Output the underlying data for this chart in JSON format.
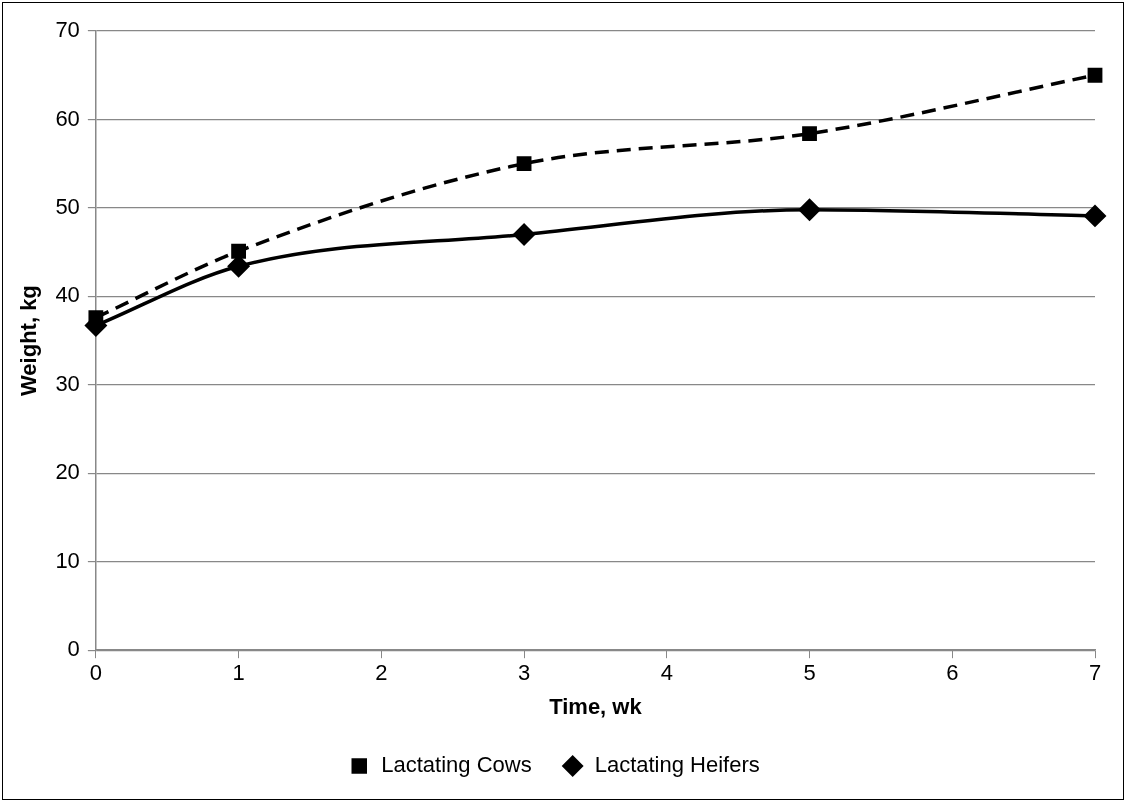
{
  "chart_data": {
    "type": "line",
    "xlabel": "Time, wk",
    "ylabel": "Weight, kg",
    "x": [
      0,
      1,
      3,
      5,
      7
    ],
    "series": [
      {
        "name": "Lactating Cows",
        "color": "#000000",
        "values": [
          37.6,
          45.1,
          55.0,
          58.4,
          65.0
        ],
        "marker": "square",
        "line_style": "dashed"
      },
      {
        "name": "Lactating Heifers",
        "color": "#000000",
        "values": [
          36.7,
          43.4,
          47.0,
          49.8,
          49.1
        ],
        "marker": "diamond",
        "line_style": "solid"
      }
    ],
    "xlim": [
      0,
      7
    ],
    "xticks": [
      0,
      1,
      2,
      3,
      4,
      5,
      6,
      7
    ],
    "ylim": [
      0,
      70
    ],
    "yticks": [
      0,
      10,
      20,
      30,
      40,
      50,
      60,
      70
    ],
    "grid": "y",
    "legend": "bottom"
  }
}
